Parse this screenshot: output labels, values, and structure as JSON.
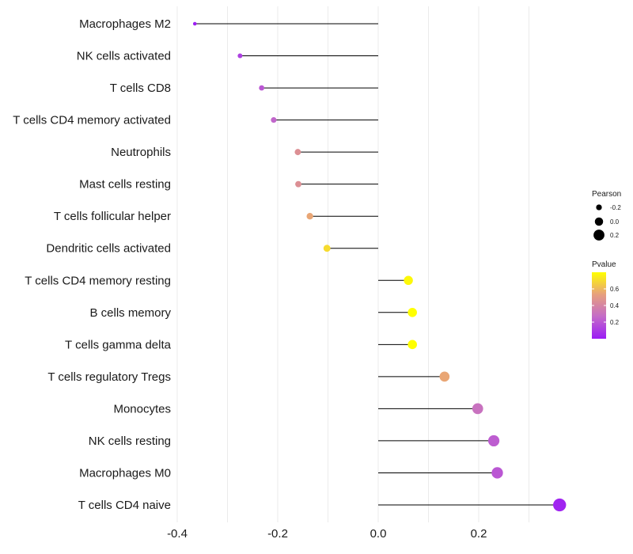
{
  "chart_data": {
    "type": "lollipop",
    "categories": [
      "Macrophages M2",
      "NK cells activated",
      "T cells CD8",
      "T cells CD4 memory activated",
      "Neutrophils",
      "Mast cells resting",
      "T cells follicular helper",
      "Dendritic cells activated",
      "T cells CD4 memory resting",
      "B cells memory",
      "T cells gamma delta",
      "T cells regulatory  Tregs ",
      "Monocytes",
      "NK cells resting",
      "Macrophages M0",
      "T cells CD4 naive"
    ],
    "values": [
      -0.365,
      -0.275,
      -0.232,
      -0.208,
      -0.16,
      -0.159,
      -0.136,
      -0.102,
      0.06,
      0.068,
      0.068,
      0.132,
      0.198,
      0.23,
      0.237,
      0.361
    ],
    "pvalues": [
      0.01,
      0.12,
      0.2,
      0.25,
      0.45,
      0.45,
      0.55,
      0.7,
      0.78,
      0.8,
      0.8,
      0.55,
      0.3,
      0.22,
      0.2,
      0.03
    ],
    "xlim": [
      -0.4,
      0.4
    ],
    "xticks": [
      -0.4,
      -0.2,
      0.0,
      0.2
    ],
    "xtick_labels": [
      "-0.4",
      "-0.2",
      "0.0",
      "0.2"
    ],
    "xlabel": "",
    "ylabel": "",
    "grid": true,
    "legend_position": "right",
    "legend_size": {
      "title": "Pearson",
      "values": [
        -0.2,
        0.0,
        0.2
      ],
      "labels": [
        "-0.2",
        "0.0",
        "0.2"
      ]
    },
    "legend_color": {
      "title": "Pvalue",
      "range": [
        0.0,
        0.8
      ],
      "ticks": [
        0.2,
        0.4,
        0.6
      ],
      "tick_labels": [
        "0.2",
        "0.4",
        "0.6"
      ],
      "colors": [
        "#9b1cf5",
        "#c46bc8",
        "#e7a07d",
        "#ffff00"
      ]
    }
  }
}
